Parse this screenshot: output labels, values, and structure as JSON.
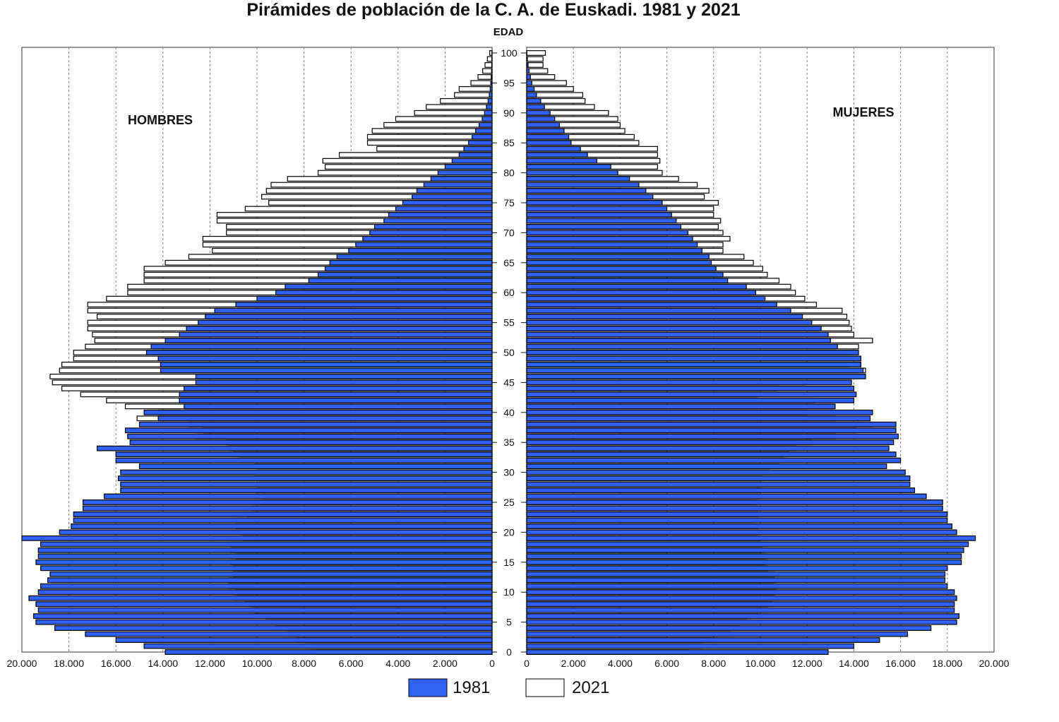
{
  "colors": {
    "series_1981": "#2f62f0",
    "series_2021": "#ffffff",
    "bar_stroke": "#000000",
    "grid": "#808080"
  },
  "chart_data": {
    "type": "bar",
    "orientation": "horizontal-population-pyramid",
    "title": "Pirámides de población de la C. A. de Euskadi. 1981 y 2021",
    "ylabel": "EDAD",
    "left_panel_label": "HOMBRES",
    "right_panel_label": "MUJERES",
    "xlim": [
      0,
      20000
    ],
    "ylim": [
      0,
      100
    ],
    "x_ticks": [
      "20.000",
      "18.000",
      "16.000",
      "14.000",
      "12.000",
      "10.000",
      "8.000",
      "6.000",
      "4.000",
      "2.000",
      "0"
    ],
    "x_ticks_right": [
      "0",
      "2.000",
      "4.000",
      "6.000",
      "8.000",
      "10.000",
      "12.000",
      "14.000",
      "16.000",
      "18.000",
      "20.000"
    ],
    "age_ticks": [
      "0",
      "5",
      "10",
      "15",
      "20",
      "25",
      "30",
      "35",
      "40",
      "45",
      "50",
      "55",
      "60",
      "65",
      "70",
      "75",
      "80",
      "85",
      "90",
      "95",
      "100"
    ],
    "grid": true,
    "legend": [
      "1981",
      "2021"
    ],
    "legend_position": "bottom",
    "ages": [
      0,
      1,
      2,
      3,
      4,
      5,
      6,
      7,
      8,
      9,
      10,
      11,
      12,
      13,
      14,
      15,
      16,
      17,
      18,
      19,
      20,
      21,
      22,
      23,
      24,
      25,
      26,
      27,
      28,
      29,
      30,
      31,
      32,
      33,
      34,
      35,
      36,
      37,
      38,
      39,
      40,
      41,
      42,
      43,
      44,
      45,
      46,
      47,
      48,
      49,
      50,
      51,
      52,
      53,
      54,
      55,
      56,
      57,
      58,
      59,
      60,
      61,
      62,
      63,
      64,
      65,
      66,
      67,
      68,
      69,
      70,
      71,
      72,
      73,
      74,
      75,
      76,
      77,
      78,
      79,
      80,
      81,
      82,
      83,
      84,
      85,
      86,
      87,
      88,
      89,
      90,
      91,
      92,
      93,
      94,
      95,
      96,
      97,
      98,
      99,
      100
    ],
    "series": [
      {
        "name": "1981",
        "side": "HOMBRES",
        "values": [
          13900,
          14800,
          16000,
          17300,
          18600,
          19400,
          19500,
          19300,
          19400,
          19700,
          19300,
          19200,
          18900,
          18800,
          19200,
          19400,
          19300,
          19300,
          19200,
          20000,
          18400,
          17900,
          17800,
          17800,
          17400,
          17400,
          16500,
          15800,
          15800,
          15900,
          15800,
          15000,
          16000,
          16000,
          16800,
          15400,
          15500,
          15600,
          15000,
          14200,
          14800,
          13100,
          13300,
          13300,
          13100,
          12600,
          12600,
          14100,
          14100,
          14200,
          14700,
          14500,
          13900,
          13300,
          13000,
          12500,
          12200,
          11800,
          10900,
          10000,
          9200,
          8800,
          7800,
          7400,
          7100,
          6900,
          6600,
          6100,
          5800,
          5500,
          5200,
          5000,
          4600,
          4400,
          4100,
          3800,
          3400,
          3200,
          2900,
          2600,
          2300,
          2000,
          1700,
          1400,
          1200,
          1000,
          850,
          700,
          550,
          420,
          320,
          240,
          170,
          120,
          80,
          55,
          35,
          22,
          14,
          9,
          5
        ]
      },
      {
        "name": "2021",
        "side": "HOMBRES",
        "values": [
          7500,
          7900,
          8300,
          8700,
          9200,
          9600,
          10100,
          10200,
          10500,
          11000,
          10900,
          11200,
          11200,
          11000,
          11000,
          11100,
          10900,
          11100,
          11100,
          10600,
          10700,
          10900,
          10900,
          10400,
          10200,
          9900,
          9800,
          10000,
          9900,
          10100,
          10000,
          10100,
          10700,
          11000,
          11200,
          11300,
          12600,
          12300,
          12900,
          15100,
          14200,
          15600,
          16400,
          17500,
          18300,
          18700,
          18800,
          18400,
          18300,
          17800,
          17800,
          17300,
          16900,
          17000,
          17200,
          17200,
          16800,
          17200,
          17200,
          16400,
          15500,
          15500,
          14800,
          14800,
          14800,
          13900,
          12900,
          11900,
          12300,
          12300,
          11300,
          11300,
          11700,
          11700,
          10500,
          9500,
          9800,
          9600,
          9400,
          8700,
          7400,
          7100,
          7200,
          6500,
          4900,
          5300,
          5300,
          5100,
          4600,
          4100,
          3300,
          2800,
          2200,
          1600,
          1400,
          900,
          600,
          400,
          300,
          200,
          100
        ]
      },
      {
        "name": "1981",
        "side": "MUJERES",
        "values": [
          12900,
          14000,
          15100,
          16300,
          17300,
          18400,
          18500,
          18300,
          18300,
          18400,
          18300,
          18000,
          17900,
          17900,
          18000,
          18600,
          18600,
          18700,
          18900,
          19200,
          18400,
          18200,
          18000,
          18000,
          17800,
          17800,
          17100,
          16600,
          16400,
          16400,
          16200,
          15400,
          16000,
          15800,
          15500,
          15700,
          15900,
          15800,
          15800,
          14700,
          14800,
          13200,
          14000,
          14100,
          14000,
          13900,
          14500,
          14400,
          14300,
          14300,
          14200,
          13300,
          13000,
          12900,
          12600,
          12200,
          11800,
          11300,
          10700,
          10200,
          9800,
          9400,
          8600,
          8400,
          8100,
          7900,
          7800,
          7500,
          7300,
          7100,
          6900,
          6600,
          6400,
          6200,
          6000,
          5800,
          5400,
          5100,
          4800,
          4400,
          3900,
          3600,
          3000,
          2600,
          2300,
          1900,
          1800,
          1600,
          1400,
          1200,
          1000,
          760,
          600,
          420,
          320,
          220,
          160,
          100,
          60,
          30,
          10
        ]
      },
      {
        "name": "2021",
        "side": "MUJERES",
        "values": [
          6900,
          7500,
          7900,
          8700,
          9100,
          9400,
          9900,
          10300,
          10500,
          10600,
          10600,
          10700,
          10600,
          10600,
          10300,
          10200,
          10300,
          10100,
          10100,
          10000,
          9900,
          9900,
          9800,
          9900,
          9900,
          9800,
          9900,
          10000,
          10100,
          10100,
          10400,
          10800,
          11000,
          11200,
          11500,
          12200,
          13200,
          14100,
          14800,
          13200,
          12000,
          13100,
          12300,
          9900,
          10700,
          11900,
          13900,
          14500,
          13800,
          14300,
          13900,
          14200,
          14800,
          14000,
          13900,
          13800,
          13700,
          13500,
          12400,
          11900,
          11500,
          11300,
          10800,
          10300,
          10100,
          9700,
          9300,
          8400,
          8400,
          8700,
          8400,
          8200,
          8300,
          8000,
          8000,
          8200,
          7600,
          7800,
          7300,
          6500,
          5800,
          5600,
          5700,
          5600,
          5600,
          4800,
          4600,
          4200,
          4000,
          3900,
          3500,
          2900,
          2500,
          2400,
          2000,
          1700,
          1200,
          900,
          700,
          700,
          800
        ]
      }
    ]
  }
}
